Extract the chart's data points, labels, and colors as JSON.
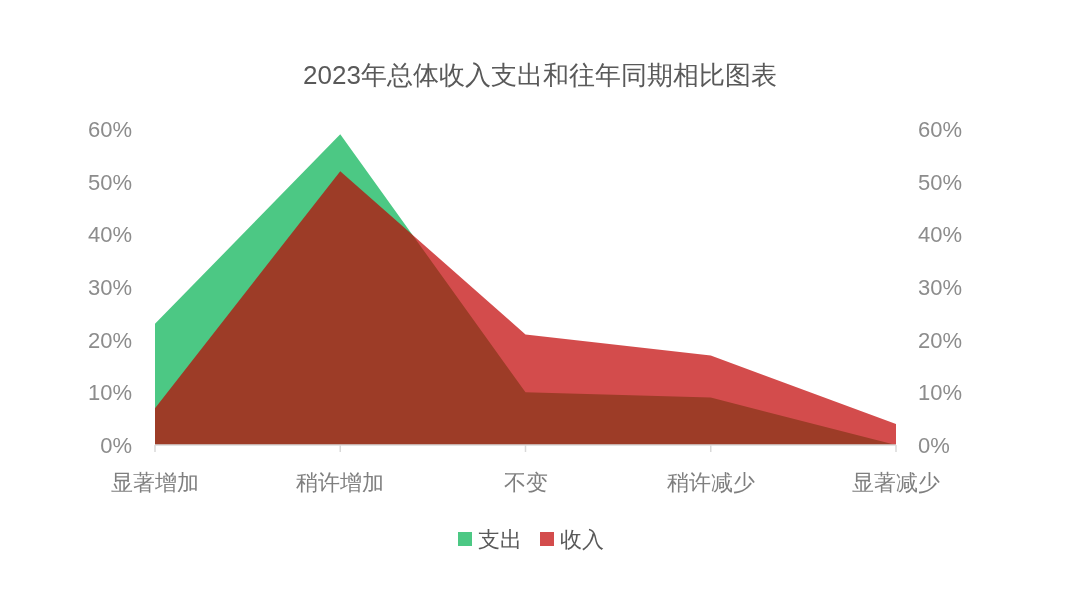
{
  "chart_data": {
    "type": "area",
    "title": "2023年总体收入支出和往年同期相比图表",
    "categories": [
      "显著增加",
      "稍许增加",
      "不变",
      "稍许减少",
      "显著减少"
    ],
    "series": [
      {
        "name": "支出",
        "color": "#00b050",
        "values": [
          23,
          59,
          10,
          9,
          0
        ]
      },
      {
        "name": "收入",
        "color": "#c00000",
        "values": [
          7,
          52,
          21,
          17,
          4
        ]
      }
    ],
    "ylim": [
      0,
      60
    ],
    "yticks": [
      {
        "value": 0,
        "label": "0%"
      },
      {
        "value": 10,
        "label": "10%"
      },
      {
        "value": 20,
        "label": "20%"
      },
      {
        "value": 30,
        "label": "30%"
      },
      {
        "value": 40,
        "label": "40%"
      },
      {
        "value": 50,
        "label": "50%"
      },
      {
        "value": 60,
        "label": "60%"
      }
    ],
    "y2lim": [
      0,
      60
    ],
    "y2ticks": [
      {
        "value": 0,
        "label": "0%"
      },
      {
        "value": 10,
        "label": "10%"
      },
      {
        "value": 20,
        "label": "20%"
      },
      {
        "value": 30,
        "label": "30%"
      },
      {
        "value": 40,
        "label": "40%"
      },
      {
        "value": 50,
        "label": "50%"
      },
      {
        "value": 60,
        "label": "60%"
      }
    ],
    "grid": false,
    "legend": "bottom"
  }
}
